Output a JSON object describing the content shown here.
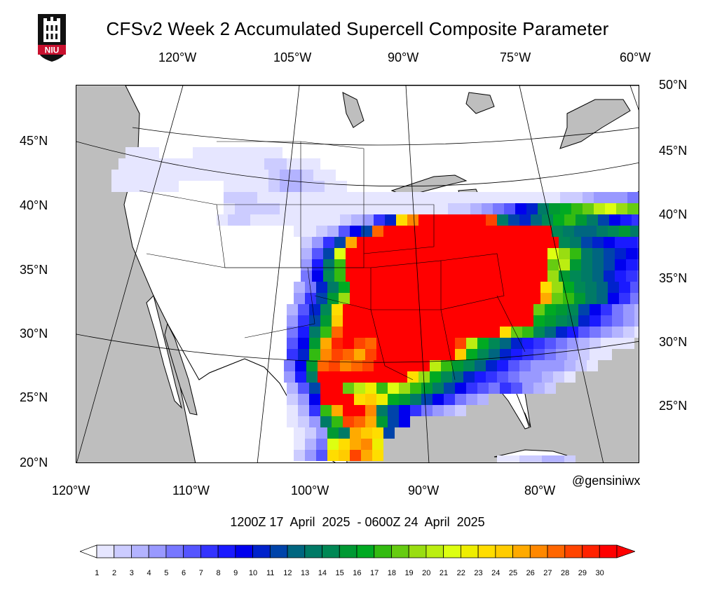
{
  "title": "CFSv2 Week 2 Accumulated Supercell Composite Parameter",
  "credit": "@gensiniwx",
  "date_range": "1200Z 17  April  2025  - 0600Z 24  April  2025",
  "logo": {
    "text": "NIU",
    "color": "#c8102e"
  },
  "axes": {
    "top_lon_labels": [
      "120°W",
      "105°W",
      "90°W",
      "75°W",
      "60°W"
    ],
    "bottom_lon_labels": [
      "120°W",
      "110°W",
      "100°W",
      "90°W",
      "80°W"
    ],
    "left_lat_labels": [
      "45°N",
      "40°N",
      "35°N",
      "30°N",
      "25°N",
      "20°N"
    ],
    "right_lat_labels": [
      "50°N",
      "45°N",
      "40°N",
      "35°N",
      "30°N",
      "25°N"
    ]
  },
  "colorbar": {
    "labels": [
      "1",
      "2",
      "3",
      "4",
      "5",
      "6",
      "7",
      "8",
      "9",
      "10",
      "11",
      "12",
      "13",
      "14",
      "15",
      "16",
      "17",
      "18",
      "19",
      "20",
      "21",
      "22",
      "23",
      "24",
      "25",
      "26",
      "27",
      "28",
      "29",
      "30"
    ],
    "colors": [
      "#e6e6ff",
      "#ccccff",
      "#b3b3ff",
      "#9999ff",
      "#7777ff",
      "#5555ff",
      "#3333ff",
      "#1a1aff",
      "#0000ee",
      "#0022cc",
      "#0044aa",
      "#006680",
      "#007a66",
      "#008855",
      "#009933",
      "#00aa22",
      "#33bb11",
      "#66cc11",
      "#99dd11",
      "#bbee11",
      "#ddff11",
      "#eeee00",
      "#ffdd00",
      "#ffcc00",
      "#ffaa00",
      "#ff8800",
      "#ff6600",
      "#ff4400",
      "#ff2200",
      "#ff0000"
    ]
  },
  "map_colors": {
    "land": "#ffffff",
    "water": "#bebebe",
    "lakes": "#bebebe"
  }
}
